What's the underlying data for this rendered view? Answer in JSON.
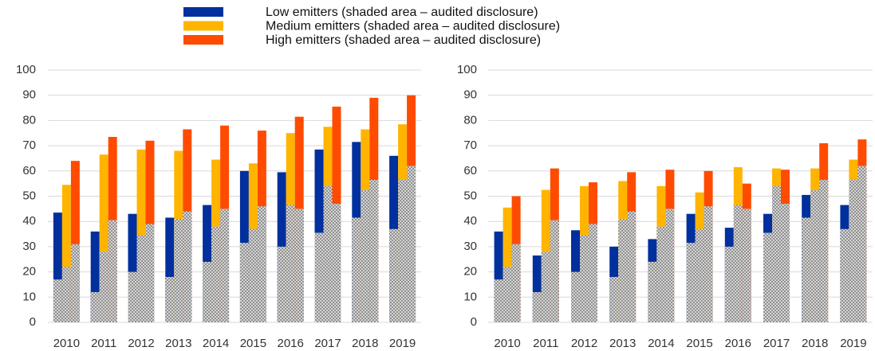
{
  "chart_data": [
    {
      "type": "bar",
      "categories": [
        "2010",
        "2011",
        "2012",
        "2013",
        "2014",
        "2015",
        "2016",
        "2017",
        "2018",
        "2019"
      ],
      "ylim": [
        0,
        100
      ],
      "yticks": [
        0,
        10,
        20,
        30,
        40,
        50,
        60,
        70,
        80,
        90,
        100
      ],
      "grid": true,
      "series": [
        {
          "name": "Low emitters (shaded area – audited disclosure)",
          "color": "#002f9e",
          "values": [
            43.5,
            36,
            43,
            41.5,
            46.5,
            60,
            59.5,
            68.5,
            71.5,
            66
          ],
          "audited": [
            17,
            12,
            20,
            18,
            24,
            31.5,
            30,
            35.5,
            41.5,
            37
          ]
        },
        {
          "name": "Medium emitters (shaded area – audited disclosure)",
          "color": "#ffb400",
          "values": [
            54.5,
            66.5,
            68.5,
            68,
            64.5,
            63,
            75,
            77.5,
            76.5,
            78.5
          ],
          "audited": [
            22,
            28,
            34.5,
            41,
            38,
            37,
            46.5,
            54,
            52.5,
            56.5
          ]
        },
        {
          "name": "High emitters (shaded area – audited disclosure)",
          "color": "#ff4b00",
          "values": [
            64,
            73.5,
            72,
            76.5,
            78,
            76,
            81.5,
            85.5,
            89,
            90
          ],
          "audited": [
            31,
            40.5,
            39,
            44,
            45,
            46,
            45,
            47,
            56.5,
            62
          ]
        }
      ]
    },
    {
      "type": "bar",
      "categories": [
        "2010",
        "2011",
        "2012",
        "2013",
        "2014",
        "2015",
        "2016",
        "2017",
        "2018",
        "2019"
      ],
      "ylim": [
        0,
        100
      ],
      "yticks": [
        0,
        10,
        20,
        30,
        40,
        50,
        60,
        70,
        80,
        90,
        100
      ],
      "grid": true,
      "series": [
        {
          "color": "#002f9e",
          "values": [
            36,
            26.5,
            36.5,
            30,
            33,
            43,
            37.5,
            43,
            50.5,
            46.5
          ],
          "audited": [
            17,
            12,
            20,
            18,
            24,
            31.5,
            30,
            35.5,
            41.5,
            37
          ]
        },
        {
          "color": "#ffb400",
          "values": [
            45.5,
            52.5,
            54,
            56,
            54,
            51.5,
            61.5,
            61,
            61,
            64.5
          ],
          "audited": [
            22,
            28,
            34.5,
            41,
            38,
            37,
            46.5,
            54,
            52.5,
            56.5
          ]
        },
        {
          "color": "#ff4b00",
          "values": [
            50,
            61,
            55.5,
            59.5,
            60.5,
            60,
            55,
            60.5,
            71,
            72.5
          ],
          "audited": [
            31,
            40.5,
            39,
            44,
            45,
            46,
            45,
            47,
            56.5,
            62
          ]
        }
      ]
    }
  ]
}
